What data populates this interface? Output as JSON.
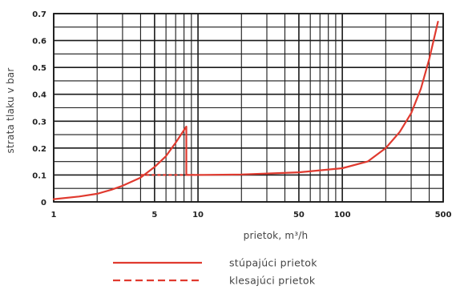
{
  "chart_data": {
    "type": "line",
    "x_scale": "log",
    "xlabel": "prietok, m³/h",
    "ylabel": "strata tlaku v bar",
    "xlim": [
      1,
      500
    ],
    "ylim": [
      0,
      0.7
    ],
    "x_ticks": [
      1,
      5,
      10,
      50,
      100,
      500
    ],
    "x_tick_labels": [
      "1",
      "5",
      "10",
      "50",
      "100",
      "500"
    ],
    "y_ticks": [
      0,
      0.1,
      0.2,
      0.3,
      0.4,
      0.5,
      0.6,
      0.7
    ],
    "y_tick_labels": [
      "0",
      "0.1",
      "0.2",
      "0.3",
      "0.4",
      "0.5",
      "0.6",
      "0.7"
    ],
    "grid": true,
    "legend_position": "bottom",
    "color": "#e03a2f",
    "series": [
      {
        "name": "stúpajúci prietok",
        "style": "solid",
        "x": [
          1,
          1.5,
          2,
          2.5,
          3,
          4,
          5,
          6,
          7,
          8.3,
          8.3,
          10,
          20,
          50,
          100,
          150,
          200,
          250,
          300,
          350,
          400,
          460
        ],
        "y": [
          0.01,
          0.02,
          0.03,
          0.045,
          0.06,
          0.09,
          0.13,
          0.17,
          0.22,
          0.28,
          0.1,
          0.1,
          0.102,
          0.11,
          0.125,
          0.15,
          0.2,
          0.26,
          0.33,
          0.42,
          0.53,
          0.67
        ]
      },
      {
        "name": "klesajúci prietok",
        "style": "dashed",
        "x": [
          4,
          5,
          6,
          7,
          8,
          9,
          10
        ],
        "y": [
          0.1,
          0.1,
          0.1,
          0.1,
          0.1,
          0.1,
          0.1
        ]
      }
    ]
  }
}
